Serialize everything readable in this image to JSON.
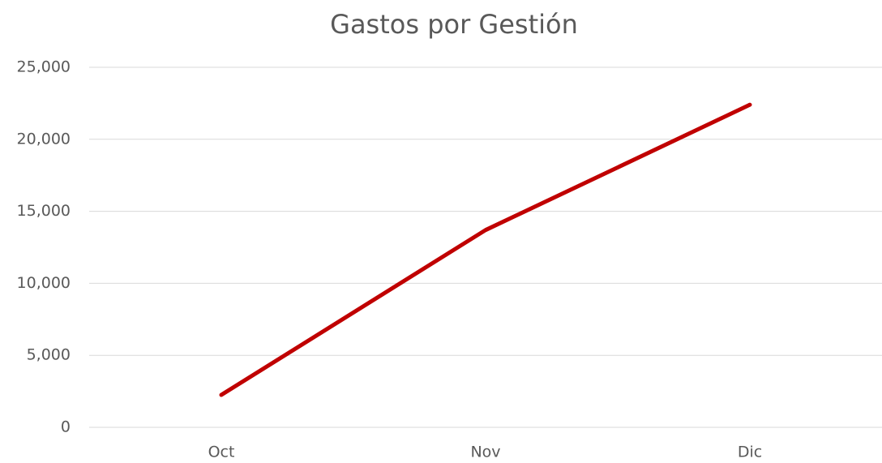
{
  "chart_data": {
    "type": "line",
    "title": "Gastos por Gestión",
    "categories": [
      "Oct",
      "Nov",
      "Dic"
    ],
    "values": [
      2250,
      13700,
      22400
    ],
    "color": "#c00000",
    "ylim": [
      0,
      25000
    ],
    "yticks": [
      0,
      {
        "value": 5000,
        "label": "5,000"
      },
      {
        "value": 10000,
        "label": "10,000"
      },
      {
        "value": 15000,
        "label": "15,000"
      },
      {
        "value": 20000,
        "label": "20,000"
      },
      {
        "value": 25000,
        "label": "25,000"
      }
    ],
    "grid": true
  }
}
